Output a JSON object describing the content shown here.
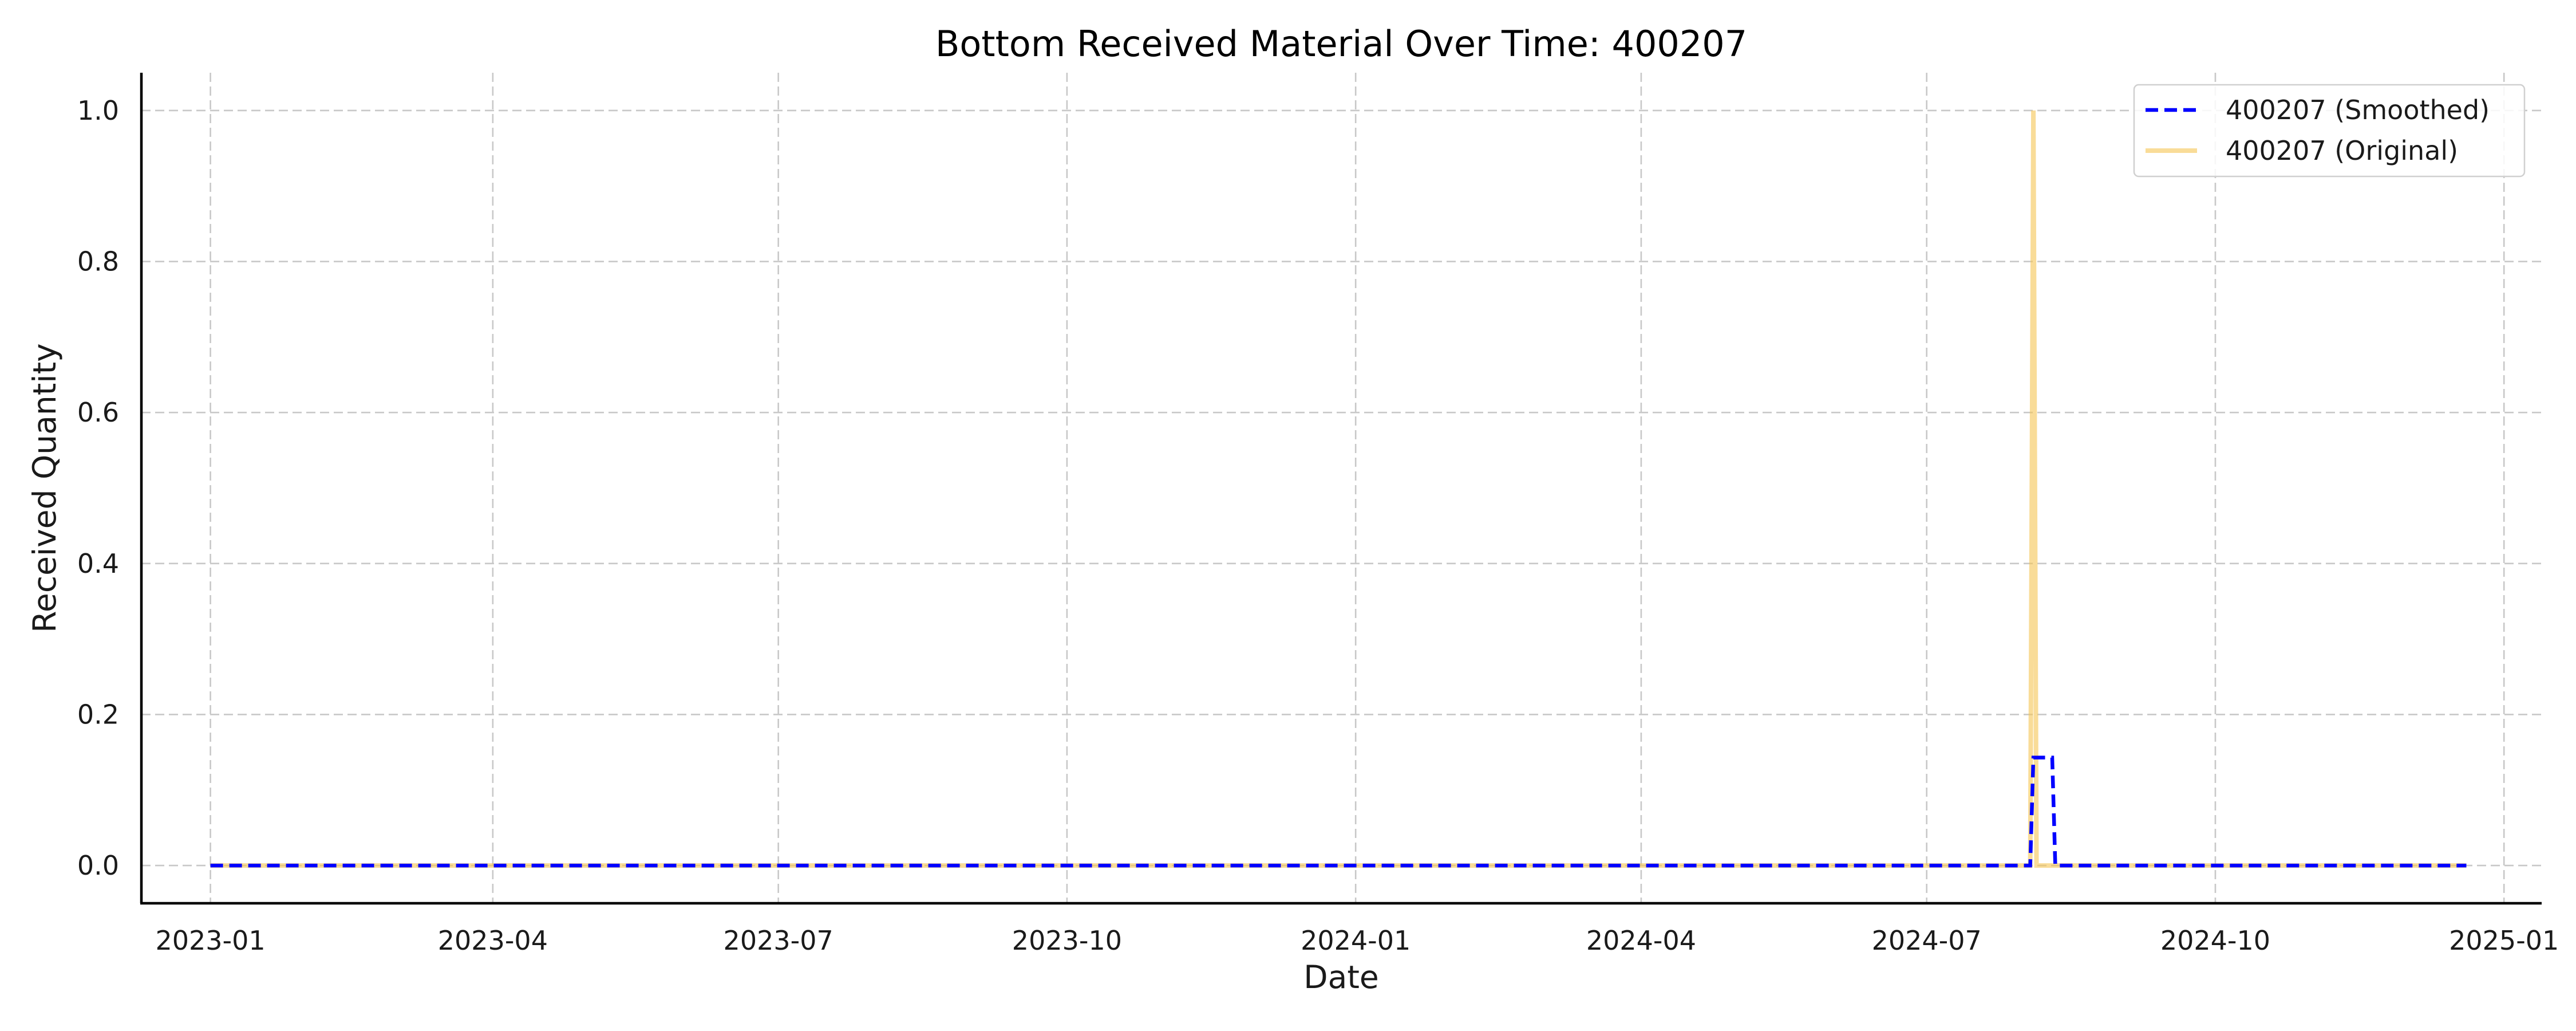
{
  "chart_data": {
    "type": "line",
    "title": "Bottom Received Material Over Time: 400207",
    "xlabel": "Date",
    "ylabel": "Received Quantity",
    "x_type": "date",
    "xlim": [
      "2022-12-10",
      "2025-01-13"
    ],
    "ylim": [
      -0.05,
      1.05
    ],
    "x_ticks": [
      "2023-01-01",
      "2023-04-01",
      "2023-07-01",
      "2023-10-01",
      "2024-01-01",
      "2024-04-01",
      "2024-07-01",
      "2024-10-01",
      "2025-01-01"
    ],
    "x_tick_labels": [
      "2023-01",
      "2023-04",
      "2023-07",
      "2023-10",
      "2024-01",
      "2024-04",
      "2024-07",
      "2024-10",
      "2025-01"
    ],
    "y_ticks": [
      0.0,
      0.2,
      0.4,
      0.6,
      0.8,
      1.0
    ],
    "y_tick_labels": [
      "0.0",
      "0.2",
      "0.4",
      "0.6",
      "0.8",
      "1.0"
    ],
    "grid": true,
    "legend_position": "top-right",
    "series": [
      {
        "name": "400207 (Smoothed)",
        "color": "#0000ff",
        "style": "dashed",
        "points": [
          [
            "2023-01-01",
            0
          ],
          [
            "2024-08-03",
            0
          ],
          [
            "2024-08-04",
            0.143
          ],
          [
            "2024-08-10",
            0.143
          ],
          [
            "2024-08-11",
            0
          ],
          [
            "2024-12-20",
            0
          ]
        ]
      },
      {
        "name": "400207 (Original)",
        "color": "#f5c454",
        "style": "solid",
        "points": [
          [
            "2023-01-01",
            0
          ],
          [
            "2024-08-03",
            0
          ],
          [
            "2024-08-04",
            1.0
          ],
          [
            "2024-08-05",
            0
          ],
          [
            "2024-12-20",
            0
          ]
        ]
      }
    ]
  }
}
